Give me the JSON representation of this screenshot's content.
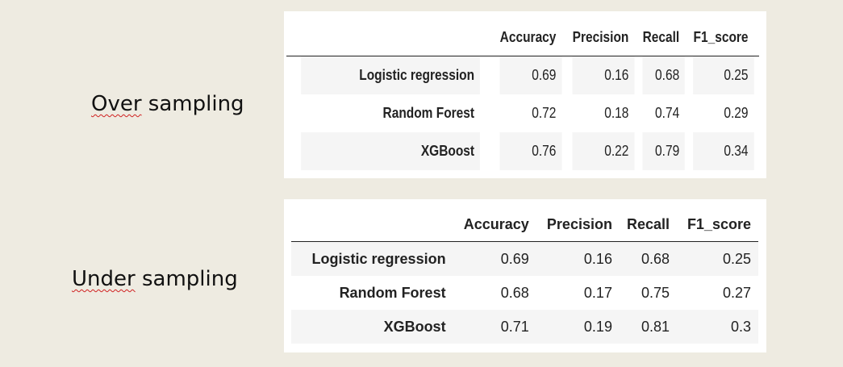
{
  "over": {
    "label_part1": "Over",
    "label_part2": " sampling",
    "columns": [
      "Accuracy",
      "Precision",
      "Recall",
      "F1_score"
    ],
    "rows": [
      {
        "name": "Logistic regression",
        "values": [
          "0.69",
          "0.16",
          "0.68",
          "0.25"
        ]
      },
      {
        "name": "Random Forest",
        "values": [
          "0.72",
          "0.18",
          "0.74",
          "0.29"
        ]
      },
      {
        "name": "XGBoost",
        "values": [
          "0.76",
          "0.22",
          "0.79",
          "0.34"
        ]
      }
    ]
  },
  "under": {
    "label_part1": "Under",
    "label_part2": " sampling",
    "columns": [
      "Accuracy",
      "Precision",
      "Recall",
      "F1_score"
    ],
    "rows": [
      {
        "name": "Logistic regression",
        "values": [
          "0.69",
          "0.16",
          "0.68",
          "0.25"
        ]
      },
      {
        "name": "Random Forest",
        "values": [
          "0.68",
          "0.17",
          "0.75",
          "0.27"
        ]
      },
      {
        "name": "XGBoost",
        "values": [
          "0.71",
          "0.19",
          "0.81",
          "0.3"
        ]
      }
    ]
  },
  "colors": {
    "background": "#eeebe1",
    "panel": "#ffffff",
    "stripe": "#f5f5f5",
    "spellcheck_underline": "#d02020"
  }
}
